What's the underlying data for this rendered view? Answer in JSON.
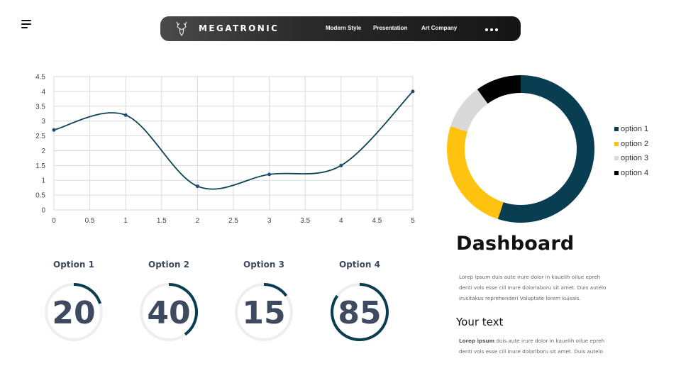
{
  "navbar": {
    "brand": "MEGATRONIC",
    "links": [
      "Modern Style",
      "Presentation",
      "Art Company"
    ]
  },
  "colors": {
    "navy": "#0f4257",
    "teal": "#083d52",
    "gold": "#ffc20e",
    "grey": "#d9d9d9",
    "black": "#000000",
    "label": "#3d4a60"
  },
  "icons": {
    "menu": "hamburger-menu-icon",
    "logo": "deer-head-logo-icon",
    "more": "three-dots-icon"
  },
  "chart_data": [
    {
      "type": "line",
      "title": "",
      "xlabel": "",
      "ylabel": "",
      "smooth": true,
      "grid": true,
      "x": [
        0,
        1,
        2,
        3,
        4,
        5
      ],
      "series": [
        {
          "values": [
            2.7,
            3.2,
            0.8,
            1.2,
            1.5,
            4.0
          ]
        }
      ],
      "xlim": [
        0,
        5
      ],
      "ylim": [
        0,
        4.5
      ],
      "xticks": [
        "0",
        "0.5",
        "1",
        "1.5",
        "2",
        "2.5",
        "3",
        "3.5",
        "4",
        "4.5",
        "5"
      ],
      "yticks": [
        "0",
        "0.5",
        "1",
        "1.5",
        "2",
        "2.5",
        "3",
        "3.5",
        "4",
        "4.5"
      ]
    },
    {
      "type": "pie",
      "donut": true,
      "categories": [
        "option 1",
        "option 2",
        "option 3",
        "option 4"
      ],
      "values": [
        55,
        25,
        10,
        10
      ],
      "legend": "right"
    },
    {
      "type": "pie",
      "donut": true,
      "items": [
        {
          "label": "Option 1",
          "value": 20
        },
        {
          "label": "Option 2",
          "value": 40
        },
        {
          "label": "Option 3",
          "value": 15
        },
        {
          "label": "Option 4",
          "value": 85
        }
      ],
      "max": 100
    }
  ],
  "dashboard": {
    "title": "Dashboard",
    "paragraph_lines": [
      "Lorep  ipsum duis aute irure dolor in kauelih oilue epreh",
      "deriti vols esse cill inure dolorlaboru sit amet. Duis autelo",
      "irusitakus reprehenderi Voluptate lorem kuisais."
    ],
    "subtitle": "Your text",
    "text2_bold": "Lorep  ipsum",
    "text2_line1_rest": " duis aute irure dolor in kauelih oilue epreh",
    "text2_line2": "deriti vols esse cill inure dolorlboru sit amet. Duis autelo"
  }
}
